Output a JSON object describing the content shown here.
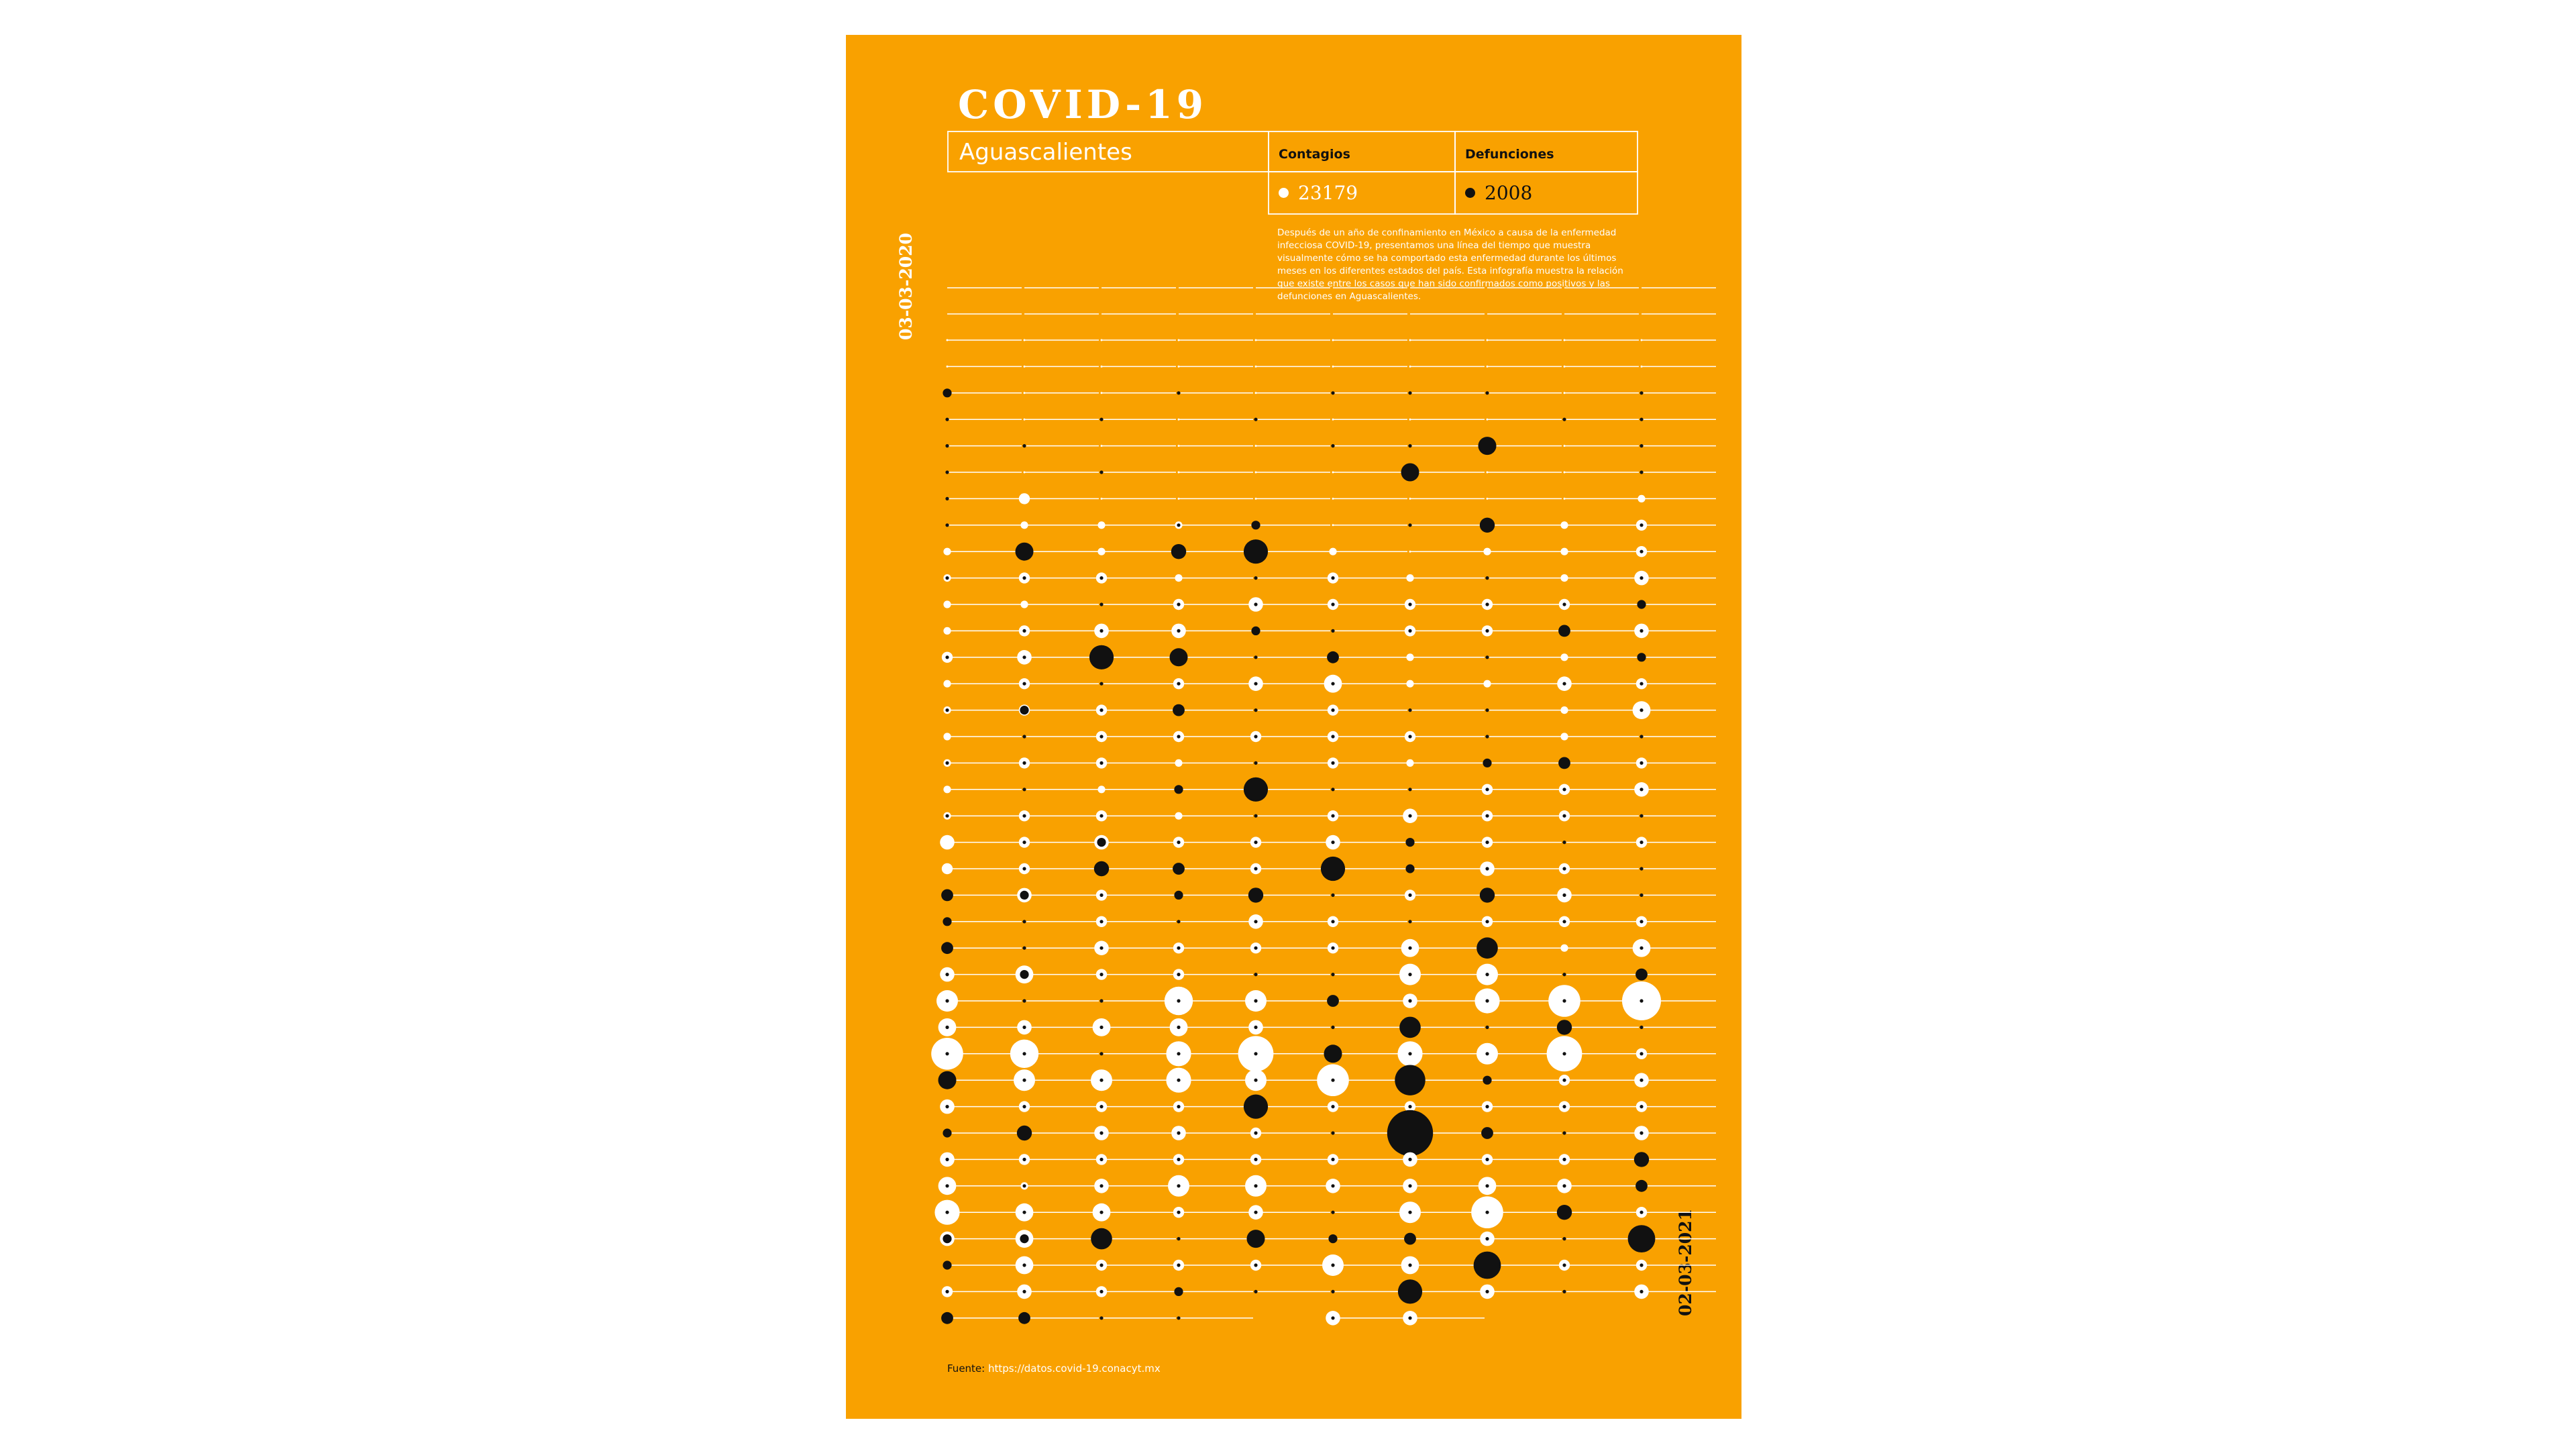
{
  "poster": {
    "background": "#F9A100",
    "title": "COVID-19",
    "state": "Aguascalientes",
    "contagios_label": "Contagios",
    "defunciones_label": "Defunciones",
    "contagios_value": "23179",
    "defunciones_value": "2008",
    "description": "Después de un año de confinamiento en México a causa de la enfermedad infecciosa COVID-19, presentamos una línea del tiempo que muestra visualmente cómo se ha comportado esta enfermedad durante los últimos meses en los diferentes estados del país. Esta infografía muestra la relación que existe entre los casos que han sido confirmados como positivos y las defunciones en Aguascalientes.",
    "date_start": "03-03-2020",
    "date_end": "02-03-2021",
    "source_label": "Fuente:",
    "source_url": "https://datos.covid-19.conacyt.mx"
  },
  "chart_data": {
    "type": "scatter",
    "encoding": "weekly timeline; white circle = confirmed cases (contagios), black circle = deaths (defunciones); circle size = relative magnitude",
    "columns": 10,
    "rows": 38,
    "colors": {
      "contagios": "#ffffff",
      "defunciones": "#111111"
    },
    "line_ends": [
      38,
      38,
      37,
      38,
      37,
      37,
      37,
      37,
      37,
      37
    ],
    "row_ticks": [
      2,
      2,
      2,
      2,
      2,
      2,
      2,
      2,
      2,
      2
    ],
    "cells": [
      [
        [
          0,
          0
        ],
        [
          0,
          0
        ],
        [
          0,
          2
        ],
        [
          0,
          1
        ],
        [
          0,
          1
        ],
        [
          0,
          1
        ],
        [
          0,
          1
        ],
        [
          0,
          1
        ],
        [
          1,
          0
        ],
        [
          1,
          1
        ],
        [
          1,
          0
        ],
        [
          1,
          0
        ],
        [
          2,
          1
        ],
        [
          1,
          0
        ],
        [
          1,
          1
        ],
        [
          1,
          0
        ],
        [
          1,
          1
        ],
        [
          1,
          0
        ],
        [
          1,
          1
        ],
        [
          3,
          0
        ],
        [
          2,
          0
        ],
        [
          0,
          3
        ],
        [
          1,
          2
        ],
        [
          0,
          3
        ],
        [
          3,
          1
        ],
        [
          5,
          1
        ],
        [
          4,
          1
        ],
        [
          8,
          1
        ],
        [
          0,
          5
        ],
        [
          3,
          1
        ],
        [
          0,
          2
        ],
        [
          3,
          1
        ],
        [
          4,
          1
        ],
        [
          6,
          1
        ],
        [
          3,
          2
        ],
        [
          0,
          2
        ],
        [
          2,
          1
        ],
        [
          0,
          3
        ]
      ],
      [
        [
          0,
          0
        ],
        [
          0,
          0
        ],
        [
          0,
          0
        ],
        [
          0,
          0
        ],
        [
          0,
          1
        ],
        [
          0,
          0
        ],
        [
          2,
          0
        ],
        [
          1,
          0
        ],
        [
          0,
          5
        ],
        [
          2,
          1
        ],
        [
          1,
          0
        ],
        [
          2,
          1
        ],
        [
          3,
          1
        ],
        [
          2,
          1
        ],
        [
          2,
          2
        ],
        [
          0,
          1
        ],
        [
          2,
          1
        ],
        [
          0,
          1
        ],
        [
          2,
          1
        ],
        [
          2,
          1
        ],
        [
          2,
          1
        ],
        [
          3,
          2
        ],
        [
          0,
          1
        ],
        [
          0,
          1
        ],
        [
          4,
          2
        ],
        [
          0,
          1
        ],
        [
          3,
          1
        ],
        [
          7,
          1
        ],
        [
          5,
          1
        ],
        [
          2,
          1
        ],
        [
          0,
          4
        ],
        [
          2,
          1
        ],
        [
          1,
          1
        ],
        [
          4,
          1
        ],
        [
          4,
          2
        ],
        [
          4,
          1
        ],
        [
          3,
          1
        ],
        [
          0,
          3
        ]
      ],
      [
        [
          0,
          0
        ],
        [
          0,
          0
        ],
        [
          0,
          0
        ],
        [
          0,
          1
        ],
        [
          0,
          0
        ],
        [
          0,
          1
        ],
        [
          0,
          0
        ],
        [
          1,
          0
        ],
        [
          1,
          0
        ],
        [
          2,
          1
        ],
        [
          0,
          1
        ],
        [
          3,
          1
        ],
        [
          0,
          7
        ],
        [
          0,
          1
        ],
        [
          2,
          1
        ],
        [
          2,
          1
        ],
        [
          2,
          1
        ],
        [
          1,
          0
        ],
        [
          2,
          1
        ],
        [
          3,
          2
        ],
        [
          0,
          4
        ],
        [
          2,
          1
        ],
        [
          2,
          1
        ],
        [
          3,
          1
        ],
        [
          2,
          1
        ],
        [
          0,
          1
        ],
        [
          4,
          1
        ],
        [
          0,
          1
        ],
        [
          5,
          1
        ],
        [
          2,
          1
        ],
        [
          3,
          1
        ],
        [
          2,
          1
        ],
        [
          3,
          1
        ],
        [
          4,
          1
        ],
        [
          0,
          6
        ],
        [
          2,
          1
        ],
        [
          2,
          1
        ],
        [
          0,
          1
        ]
      ],
      [
        [
          0,
          0
        ],
        [
          0,
          0
        ],
        [
          0,
          1
        ],
        [
          0,
          0
        ],
        [
          0,
          0
        ],
        [
          0,
          0
        ],
        [
          0,
          0
        ],
        [
          1,
          1
        ],
        [
          0,
          4
        ],
        [
          1,
          0
        ],
        [
          2,
          1
        ],
        [
          3,
          1
        ],
        [
          0,
          5
        ],
        [
          2,
          1
        ],
        [
          0,
          3
        ],
        [
          2,
          1
        ],
        [
          1,
          0
        ],
        [
          0,
          2
        ],
        [
          1,
          0
        ],
        [
          2,
          1
        ],
        [
          0,
          3
        ],
        [
          0,
          2
        ],
        [
          0,
          1
        ],
        [
          2,
          1
        ],
        [
          2,
          1
        ],
        [
          7,
          1
        ],
        [
          4,
          1
        ],
        [
          6,
          1
        ],
        [
          6,
          1
        ],
        [
          2,
          1
        ],
        [
          3,
          1
        ],
        [
          2,
          1
        ],
        [
          5,
          1
        ],
        [
          2,
          1
        ],
        [
          0,
          1
        ],
        [
          2,
          1
        ],
        [
          0,
          2
        ],
        [
          0,
          1
        ]
      ],
      [
        [
          0,
          0
        ],
        [
          0,
          0
        ],
        [
          0,
          0
        ],
        [
          0,
          1
        ],
        [
          0,
          0
        ],
        [
          0,
          0
        ],
        [
          0,
          0
        ],
        [
          0,
          2
        ],
        [
          0,
          7
        ],
        [
          0,
          1
        ],
        [
          3,
          1
        ],
        [
          0,
          2
        ],
        [
          0,
          1
        ],
        [
          3,
          1
        ],
        [
          0,
          1
        ],
        [
          2,
          1
        ],
        [
          0,
          1
        ],
        [
          0,
          7
        ],
        [
          0,
          1
        ],
        [
          2,
          1
        ],
        [
          2,
          1
        ],
        [
          0,
          4
        ],
        [
          3,
          1
        ],
        [
          2,
          1
        ],
        [
          0,
          1
        ],
        [
          5,
          1
        ],
        [
          3,
          1
        ],
        [
          9,
          1
        ],
        [
          5,
          1
        ],
        [
          0,
          7
        ],
        [
          2,
          1
        ],
        [
          2,
          1
        ],
        [
          5,
          1
        ],
        [
          3,
          1
        ],
        [
          0,
          5
        ],
        [
          2,
          1
        ],
        [
          0,
          1
        ]
      ],
      [
        [
          0,
          0
        ],
        [
          0,
          0
        ],
        [
          0,
          1
        ],
        [
          0,
          0
        ],
        [
          0,
          1
        ],
        [
          0,
          0
        ],
        [
          0,
          0
        ],
        [
          0,
          0
        ],
        [
          1,
          0
        ],
        [
          2,
          1
        ],
        [
          2,
          1
        ],
        [
          0,
          1
        ],
        [
          0,
          3
        ],
        [
          4,
          1
        ],
        [
          2,
          1
        ],
        [
          2,
          1
        ],
        [
          2,
          1
        ],
        [
          0,
          1
        ],
        [
          2,
          1
        ],
        [
          3,
          1
        ],
        [
          0,
          7
        ],
        [
          0,
          1
        ],
        [
          2,
          1
        ],
        [
          2,
          1
        ],
        [
          0,
          1
        ],
        [
          0,
          3
        ],
        [
          0,
          1
        ],
        [
          0,
          5
        ],
        [
          8,
          1
        ],
        [
          2,
          1
        ],
        [
          0,
          1
        ],
        [
          2,
          1
        ],
        [
          3,
          1
        ],
        [
          0,
          1
        ],
        [
          0,
          2
        ],
        [
          5,
          1
        ],
        [
          0,
          1
        ],
        [
          3,
          1
        ]
      ],
      [
        [
          0,
          0
        ],
        [
          0,
          0
        ],
        [
          0,
          1
        ],
        [
          0,
          0
        ],
        [
          0,
          1
        ],
        [
          0,
          5
        ],
        [
          0,
          0
        ],
        [
          0,
          1
        ],
        [
          0,
          0
        ],
        [
          1,
          0
        ],
        [
          2,
          1
        ],
        [
          2,
          1
        ],
        [
          1,
          0
        ],
        [
          1,
          0
        ],
        [
          0,
          1
        ],
        [
          2,
          1
        ],
        [
          1,
          0
        ],
        [
          0,
          1
        ],
        [
          3,
          1
        ],
        [
          0,
          2
        ],
        [
          0,
          2
        ],
        [
          2,
          1
        ],
        [
          0,
          1
        ],
        [
          4,
          1
        ],
        [
          5,
          1
        ],
        [
          3,
          1
        ],
        [
          0,
          6
        ],
        [
          6,
          1
        ],
        [
          0,
          9
        ],
        [
          2,
          1
        ],
        [
          0,
          14
        ],
        [
          3,
          1
        ],
        [
          3,
          1
        ],
        [
          5,
          1
        ],
        [
          0,
          3
        ],
        [
          4,
          1
        ],
        [
          0,
          7
        ],
        [
          3,
          1
        ]
      ],
      [
        [
          0,
          0
        ],
        [
          0,
          0
        ],
        [
          0,
          1
        ],
        [
          0,
          0
        ],
        [
          0,
          5
        ],
        [
          0,
          0
        ],
        [
          0,
          0
        ],
        [
          0,
          4
        ],
        [
          1,
          0
        ],
        [
          0,
          1
        ],
        [
          2,
          1
        ],
        [
          2,
          1
        ],
        [
          0,
          1
        ],
        [
          1,
          0
        ],
        [
          0,
          1
        ],
        [
          0,
          1
        ],
        [
          0,
          2
        ],
        [
          2,
          1
        ],
        [
          2,
          1
        ],
        [
          2,
          1
        ],
        [
          3,
          1
        ],
        [
          0,
          4
        ],
        [
          2,
          1
        ],
        [
          0,
          6
        ],
        [
          5,
          1
        ],
        [
          6,
          1
        ],
        [
          0,
          1
        ],
        [
          5,
          1
        ],
        [
          0,
          2
        ],
        [
          2,
          1
        ],
        [
          0,
          3
        ],
        [
          2,
          1
        ],
        [
          4,
          1
        ],
        [
          8,
          1
        ],
        [
          3,
          1
        ],
        [
          0,
          8
        ],
        [
          3,
          1
        ]
      ],
      [
        [
          0,
          0
        ],
        [
          0,
          0
        ],
        [
          0,
          0
        ],
        [
          0,
          1
        ],
        [
          0,
          0
        ],
        [
          0,
          0
        ],
        [
          0,
          0
        ],
        [
          1,
          0
        ],
        [
          1,
          0
        ],
        [
          1,
          0
        ],
        [
          2,
          1
        ],
        [
          0,
          3
        ],
        [
          1,
          0
        ],
        [
          3,
          1
        ],
        [
          1,
          0
        ],
        [
          1,
          0
        ],
        [
          0,
          3
        ],
        [
          2,
          1
        ],
        [
          2,
          1
        ],
        [
          0,
          1
        ],
        [
          2,
          1
        ],
        [
          3,
          1
        ],
        [
          2,
          1
        ],
        [
          1,
          0
        ],
        [
          0,
          1
        ],
        [
          8,
          1
        ],
        [
          0,
          4
        ],
        [
          9,
          1
        ],
        [
          2,
          1
        ],
        [
          2,
          1
        ],
        [
          0,
          1
        ],
        [
          2,
          1
        ],
        [
          3,
          1
        ],
        [
          0,
          4
        ],
        [
          0,
          1
        ],
        [
          2,
          1
        ],
        [
          0,
          1
        ]
      ],
      [
        [
          0,
          0
        ],
        [
          0,
          0
        ],
        [
          0,
          1
        ],
        [
          0,
          1
        ],
        [
          0,
          1
        ],
        [
          0,
          1
        ],
        [
          1,
          0
        ],
        [
          2,
          1
        ],
        [
          2,
          1
        ],
        [
          3,
          1
        ],
        [
          0,
          2
        ],
        [
          3,
          1
        ],
        [
          0,
          2
        ],
        [
          2,
          1
        ],
        [
          4,
          1
        ],
        [
          0,
          1
        ],
        [
          2,
          1
        ],
        [
          3,
          1
        ],
        [
          0,
          1
        ],
        [
          2,
          1
        ],
        [
          0,
          1
        ],
        [
          0,
          1
        ],
        [
          2,
          1
        ],
        [
          4,
          1
        ],
        [
          0,
          3
        ],
        [
          10,
          1
        ],
        [
          0,
          1
        ],
        [
          2,
          1
        ],
        [
          3,
          1
        ],
        [
          2,
          1
        ],
        [
          3,
          1
        ],
        [
          0,
          4
        ],
        [
          0,
          3
        ],
        [
          2,
          1
        ],
        [
          0,
          8
        ],
        [
          2,
          1
        ],
        [
          3,
          1
        ]
      ]
    ]
  }
}
